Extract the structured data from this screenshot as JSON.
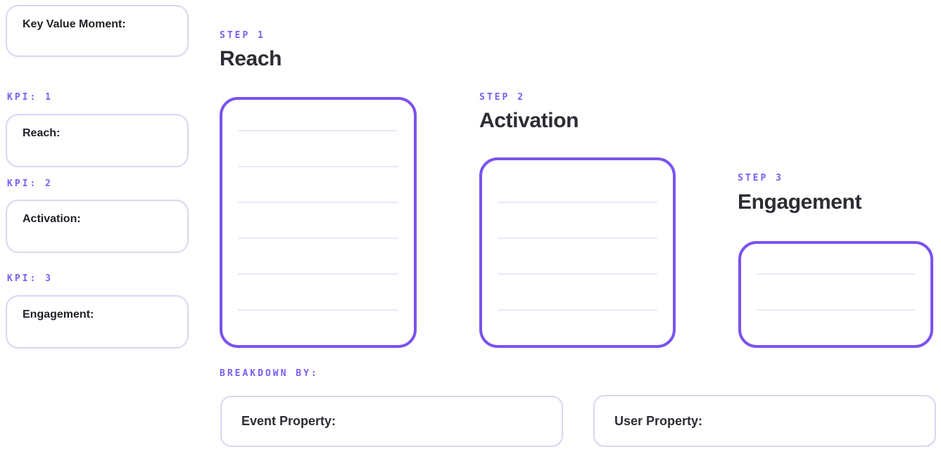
{
  "colors": {
    "accent": "#7b5cf6",
    "accent_border": "#7b52f0",
    "light_border": "#d8d5f4",
    "ruled_line": "#e9e8f8",
    "heading_text": "#2c2c34",
    "label_text": "#1e2026",
    "background": "#ffffff"
  },
  "sidebar": {
    "key_value_moment": {
      "label": "Key Value Moment:"
    },
    "kpis": [
      {
        "tag": "KPI: 1",
        "label": "Reach:"
      },
      {
        "tag": "KPI: 2",
        "label": "Activation:"
      },
      {
        "tag": "KPI: 3",
        "label": "Engagement:"
      }
    ]
  },
  "steps": [
    {
      "tag": "STEP 1",
      "title": "Reach",
      "ruled_lines": 6
    },
    {
      "tag": "STEP 2",
      "title": "Activation",
      "ruled_lines": 4
    },
    {
      "tag": "STEP 3",
      "title": "Engagement",
      "ruled_lines": 2
    }
  ],
  "breakdown": {
    "tag": "BREAKDOWN BY:",
    "fields": [
      {
        "label": "Event Property:"
      },
      {
        "label": "User Property:"
      }
    ]
  }
}
